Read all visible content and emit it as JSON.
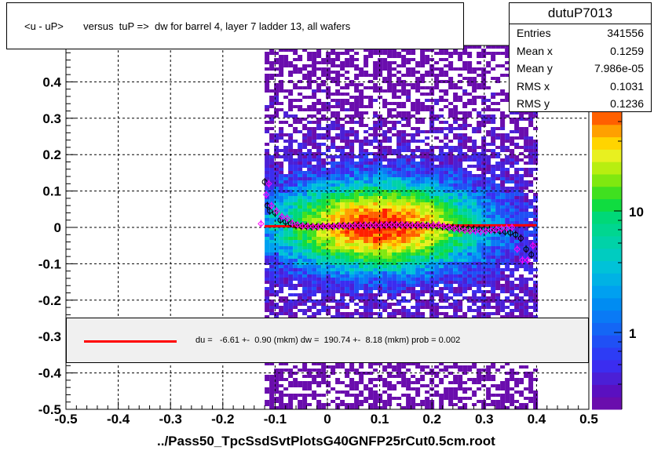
{
  "title": "<u - uP>       versus  tuP =>  dw for barrel 4, layer 7 ladder 13, all wafers",
  "stats": {
    "name": "dutuP7013",
    "rows": [
      {
        "k": "Entries",
        "v": "341556"
      },
      {
        "k": "Mean x",
        "v": "0.1259"
      },
      {
        "k": "Mean y",
        "v": "7.986e-05"
      },
      {
        "k": "RMS x",
        "v": "0.1031"
      },
      {
        "k": "RMS y",
        "v": "0.1236"
      }
    ]
  },
  "fit_text": "du =   -6.61 +-  0.90 (mkm) dw =  190.74 +-  8.18 (mkm) prob = 0.002",
  "x_label": "../Pass50_TpcSsdSvtPlotsG40GNFP25rCut0.5cm.root",
  "colors": {
    "fit_line": "#ff0000",
    "profile_black": "#000000",
    "profile_magenta": "#ff00ff"
  },
  "chart_data": {
    "type": "heatmap",
    "xlim": [
      -0.5,
      0.5
    ],
    "ylim": [
      -0.5,
      0.5
    ],
    "x_ticks": [
      "-0.5",
      "-0.4",
      "-0.3",
      "-0.2",
      "-0.1",
      "0",
      "0.1",
      "0.2",
      "0.3",
      "0.4",
      "0.5"
    ],
    "y_ticks": [
      "-0.5",
      "-0.4",
      "-0.3",
      "-0.2",
      "-0.1",
      "0",
      "0.1",
      "0.2",
      "0.3",
      "0.4"
    ],
    "z_ticks": [
      "1",
      "10"
    ],
    "grid": true,
    "log_z": true,
    "fit_line": {
      "x": [
        -0.12,
        0.4
      ],
      "y": [
        0.003,
        0.006
      ]
    },
    "profile_black": {
      "x": [
        -0.12,
        -0.115,
        -0.11,
        -0.1,
        -0.09,
        -0.08,
        -0.07,
        -0.06,
        -0.05,
        -0.04,
        -0.03,
        -0.02,
        -0.01,
        0.0,
        0.01,
        0.02,
        0.03,
        0.04,
        0.05,
        0.06,
        0.07,
        0.08,
        0.09,
        0.1,
        0.11,
        0.12,
        0.13,
        0.14,
        0.15,
        0.16,
        0.17,
        0.18,
        0.19,
        0.2,
        0.21,
        0.22,
        0.23,
        0.24,
        0.25,
        0.26,
        0.27,
        0.28,
        0.29,
        0.3,
        0.31,
        0.32,
        0.33,
        0.34,
        0.35,
        0.36,
        0.37,
        0.38,
        0.39
      ],
      "y": [
        0.125,
        0.06,
        0.045,
        0.04,
        0.02,
        0.015,
        0.01,
        0.005,
        0.003,
        0.003,
        0.002,
        0.002,
        0.003,
        0.003,
        0.003,
        0.004,
        0.004,
        0.004,
        0.005,
        0.005,
        0.005,
        0.005,
        0.006,
        0.006,
        0.006,
        0.007,
        0.007,
        0.006,
        0.006,
        0.005,
        0.005,
        0.005,
        0.005,
        0.004,
        0.003,
        0.002,
        0.001,
        0.0,
        -0.002,
        -0.003,
        -0.003,
        -0.004,
        -0.005,
        -0.005,
        -0.006,
        -0.008,
        -0.01,
        -0.012,
        -0.015,
        -0.02,
        -0.03,
        -0.06,
        -0.075
      ]
    },
    "profile_magenta": {
      "x": [
        -0.13,
        -0.12,
        -0.115,
        -0.11,
        -0.1,
        -0.09,
        -0.08,
        -0.07,
        -0.06,
        -0.05,
        -0.04,
        -0.03,
        -0.02,
        -0.01,
        0.0,
        0.01,
        0.02,
        0.03,
        0.04,
        0.05,
        0.06,
        0.07,
        0.08,
        0.09,
        0.1,
        0.11,
        0.12,
        0.13,
        0.14,
        0.15,
        0.16,
        0.17,
        0.18,
        0.19,
        0.2,
        0.21,
        0.22,
        0.23,
        0.24,
        0.25,
        0.26,
        0.27,
        0.28,
        0.29,
        0.3,
        0.31,
        0.32,
        0.33,
        0.34,
        0.35,
        0.36,
        0.37,
        0.38,
        0.39
      ],
      "y": [
        0.01,
        0.09,
        0.12,
        0.06,
        0.045,
        0.03,
        0.025,
        0.012,
        0.007,
        0.004,
        0.003,
        0.002,
        0.002,
        0.003,
        0.003,
        0.003,
        0.004,
        0.004,
        0.004,
        0.005,
        0.005,
        0.006,
        0.006,
        0.006,
        0.006,
        0.007,
        0.007,
        0.007,
        0.007,
        0.006,
        0.006,
        0.006,
        0.006,
        0.005,
        0.006,
        0.007,
        0.003,
        0.0,
        -0.003,
        -0.005,
        -0.008,
        -0.01,
        -0.01,
        -0.012,
        -0.01,
        -0.008,
        -0.006,
        -0.004,
        -0.002,
        0.0,
        -0.06,
        -0.09,
        -0.09,
        -0.05
      ]
    }
  }
}
